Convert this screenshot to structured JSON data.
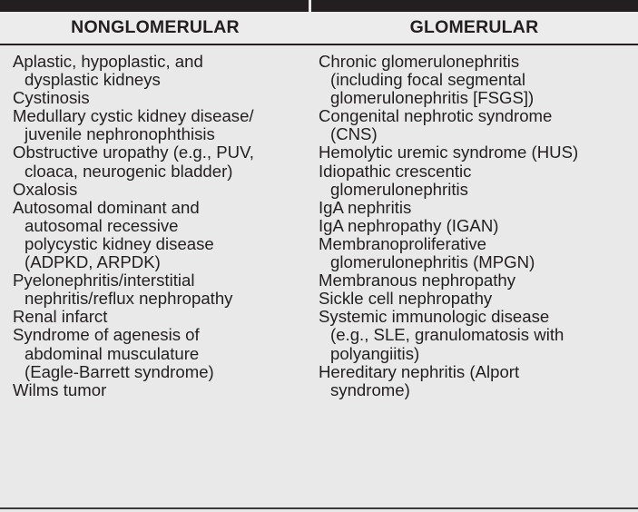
{
  "table": {
    "headers": {
      "left": "NONGLOMERULAR",
      "right": "GLOMERULAR"
    },
    "nonglomerular": [
      [
        "Aplastic, hypoplastic, and",
        "dysplastic kidneys"
      ],
      [
        "Cystinosis"
      ],
      [
        "Medullary cystic kidney disease/",
        "juvenile nephronophthisis"
      ],
      [
        "Obstructive uropathy (e.g., PUV,",
        "cloaca, neurogenic bladder)"
      ],
      [
        "Oxalosis"
      ],
      [
        "Autosomal dominant and",
        "autosomal recessive",
        "polycystic kidney disease",
        "(ADPKD, ARPDK)"
      ],
      [
        "Pyelonephritis/interstitial",
        "nephritis/reflux nephropathy"
      ],
      [
        "Renal infarct"
      ],
      [
        "Syndrome of agenesis of",
        "abdominal musculature",
        "(Eagle-Barrett syndrome)"
      ],
      [
        "Wilms tumor"
      ]
    ],
    "glomerular": [
      [
        "Chronic glomerulonephritis",
        "(including focal segmental",
        "glomerulonephritis [FSGS])"
      ],
      [
        "Congenital nephrotic syndrome",
        "(CNS)"
      ],
      [
        "Hemolytic uremic syndrome (HUS)"
      ],
      [
        "Idiopathic crescentic",
        "glomerulonephritis"
      ],
      [
        "IgA nephritis"
      ],
      [
        "IgA nephropathy (IGAN)"
      ],
      [
        "Membranoproliferative",
        "glomerulonephritis (MPGN)"
      ],
      [
        "Membranous nephropathy"
      ],
      [
        "Sickle cell nephropathy"
      ],
      [
        "Systemic immunologic disease",
        "(e.g., SLE, granulomatosis with",
        "polyangiitis)"
      ],
      [
        "Hereditary nephritis (Alport",
        "syndrome)"
      ]
    ]
  }
}
